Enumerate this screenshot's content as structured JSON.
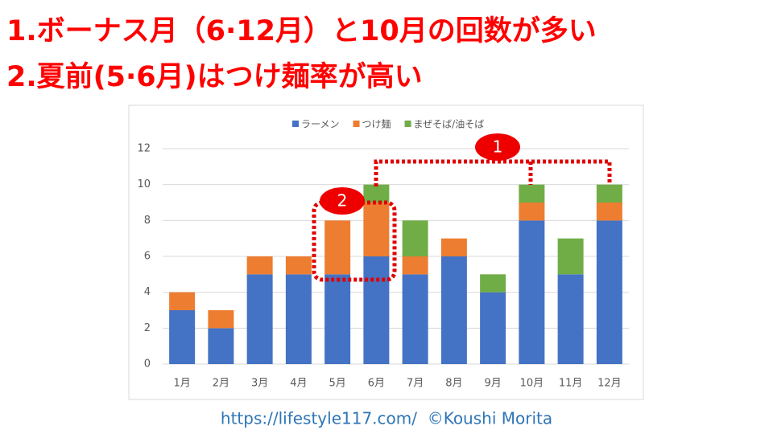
{
  "headings": [
    "1.ボーナス月（6·12月）と10月の回数が多い",
    "2.夏前(5·6月)はつけ麺率が高い"
  ],
  "chart_data": {
    "type": "bar",
    "stacked": true,
    "categories": [
      "1月",
      "2月",
      "3月",
      "4月",
      "5月",
      "6月",
      "7月",
      "8月",
      "9月",
      "10月",
      "11月",
      "12月"
    ],
    "series": [
      {
        "name": "ラーメン",
        "color": "#4472c4",
        "values": [
          3,
          2,
          5,
          5,
          5,
          6,
          5,
          6,
          4,
          8,
          5,
          8
        ]
      },
      {
        "name": "つけ麺",
        "color": "#ed7d31",
        "values": [
          1,
          1,
          1,
          1,
          3,
          3,
          1,
          1,
          0,
          1,
          0,
          1
        ]
      },
      {
        "name": "まぜそば/油そば",
        "color": "#70ad47",
        "values": [
          0,
          0,
          0,
          0,
          0,
          1,
          2,
          0,
          1,
          1,
          2,
          1
        ]
      }
    ],
    "ylim": [
      0,
      12
    ],
    "yticks": [
      0,
      2,
      4,
      6,
      8,
      10,
      12
    ],
    "grid": true,
    "legend": "top",
    "annotations": [
      "1",
      "2"
    ]
  },
  "footer": "https://lifestyle117.com/  ©Koushi Morita"
}
